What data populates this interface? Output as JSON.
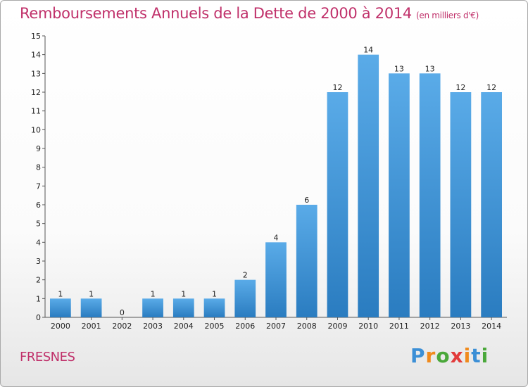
{
  "header": {
    "title": "Remboursements Annuels de la Dette de 2000 à 2014",
    "unit": "(en milliers d'€)"
  },
  "footer": {
    "commune": "FRESNES",
    "logo_letters": [
      "P",
      "r",
      "o",
      "x",
      "i",
      "t",
      "i"
    ],
    "logo_colors": [
      "#3b8fd6",
      "#f08a1c",
      "#4aa83a",
      "#e23b3b",
      "#f08a1c",
      "#3b8fd6",
      "#4aa83a"
    ]
  },
  "chart_data": {
    "type": "bar",
    "title": "Remboursements Annuels de la Dette de 2000 à 2014",
    "xlabel": "",
    "ylabel": "",
    "categories": [
      "2000",
      "2001",
      "2002",
      "2003",
      "2004",
      "2005",
      "2006",
      "2007",
      "2008",
      "2009",
      "2010",
      "2011",
      "2012",
      "2013",
      "2014"
    ],
    "values": [
      1,
      1,
      0,
      1,
      1,
      1,
      2,
      4,
      6,
      12,
      14,
      13,
      13,
      12,
      12
    ],
    "data_labels": [
      "1",
      "1",
      "0",
      "1",
      "1",
      "1",
      "2",
      "4",
      "6",
      "12",
      "14",
      "13",
      "13",
      "12",
      "12"
    ],
    "ylim": [
      0,
      15
    ],
    "yticks": [
      "0",
      "1",
      "2",
      "3",
      "4",
      "5",
      "6",
      "7",
      "8",
      "9",
      "10",
      "11",
      "12",
      "13",
      "14",
      "15"
    ],
    "grid": false,
    "bar_color_top": "#5aabe8",
    "bar_color_bottom": "#2a7cc0"
  }
}
